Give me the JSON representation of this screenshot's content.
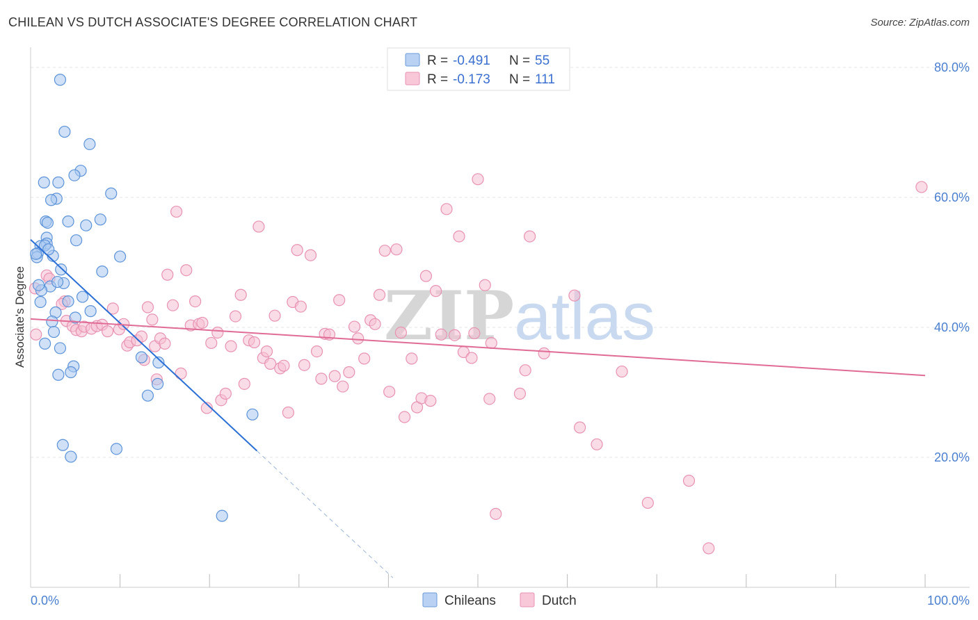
{
  "header": {
    "title": "CHILEAN VS DUTCH ASSOCIATE'S DEGREE CORRELATION CHART",
    "source": "Source: ZipAtlas.com"
  },
  "watermark": {
    "part1": "ZIP",
    "part2": "atlas"
  },
  "colors": {
    "chileans_fill": "#a9c8f0",
    "chileans_stroke": "#5b92d8",
    "chileans_line": "#2a6fd6",
    "dutch_fill": "#f6bfd2",
    "dutch_stroke": "#e892b2",
    "dutch_line": "#e06b95",
    "axis_text": "#4a7fd0",
    "grid": "#e6e6e6"
  },
  "legend": {
    "rows": [
      {
        "r_label": "R =",
        "r_value": "-0.491",
        "n_label": "N =",
        "n_value": "55"
      },
      {
        "r_label": "R =",
        "r_value": "-0.173",
        "n_label": "N =",
        "n_value": "111"
      }
    ]
  },
  "bottom_legend": {
    "chileans": "Chileans",
    "dutch": "Dutch"
  },
  "chart_data": {
    "type": "scatter",
    "title": "CHILEAN VS DUTCH ASSOCIATE'S DEGREE CORRELATION CHART",
    "xlabel": "",
    "ylabel": "Associate's Degree",
    "xlim": [
      0,
      100
    ],
    "ylim": [
      0,
      82
    ],
    "x_tick_labels": [
      "0.0%",
      "100.0%"
    ],
    "y_ticks": [
      20,
      40,
      60,
      80
    ],
    "y_tick_labels": [
      "20.0%",
      "40.0%",
      "60.0%",
      "80.0%"
    ],
    "grid": true,
    "series": [
      {
        "name": "Chileans",
        "R": -0.491,
        "N": 55,
        "trend": {
          "x0": 0,
          "y0": 53.5,
          "x1": 25.3,
          "y1": 21.0,
          "dash_to_x": 40.5
        },
        "points": [
          [
            3.3,
            78.1
          ],
          [
            3.8,
            70.1
          ],
          [
            6.6,
            68.2
          ],
          [
            5.6,
            64.1
          ],
          [
            4.9,
            63.4
          ],
          [
            1.5,
            62.3
          ],
          [
            3.1,
            62.3
          ],
          [
            9.0,
            60.6
          ],
          [
            2.9,
            59.8
          ],
          [
            2.3,
            59.6
          ],
          [
            7.8,
            56.6
          ],
          [
            1.7,
            56.3
          ],
          [
            4.2,
            56.3
          ],
          [
            1.9,
            56.1
          ],
          [
            6.2,
            55.7
          ],
          [
            1.8,
            53.8
          ],
          [
            5.1,
            53.4
          ],
          [
            1.8,
            52.9
          ],
          [
            1.1,
            52.5
          ],
          [
            1.6,
            52.6
          ],
          [
            0.8,
            51.4
          ],
          [
            2.5,
            51.0
          ],
          [
            0.7,
            50.8
          ],
          [
            10.0,
            50.9
          ],
          [
            3.4,
            48.9
          ],
          [
            8.0,
            48.6
          ],
          [
            3.7,
            46.8
          ],
          [
            2.2,
            46.3
          ],
          [
            5.8,
            44.7
          ],
          [
            1.1,
            43.9
          ],
          [
            4.2,
            44.0
          ],
          [
            6.7,
            42.5
          ],
          [
            2.8,
            42.3
          ],
          [
            2.4,
            40.9
          ],
          [
            1.6,
            37.5
          ],
          [
            3.3,
            36.8
          ],
          [
            12.4,
            35.4
          ],
          [
            14.3,
            34.6
          ],
          [
            4.8,
            34.0
          ],
          [
            4.5,
            33.1
          ],
          [
            3.1,
            32.7
          ],
          [
            14.2,
            31.3
          ],
          [
            13.1,
            29.5
          ],
          [
            24.8,
            26.6
          ],
          [
            3.6,
            21.9
          ],
          [
            9.6,
            21.3
          ],
          [
            4.5,
            20.1
          ],
          [
            21.4,
            11.0
          ],
          [
            0.6,
            51.3
          ],
          [
            2.0,
            52.0
          ],
          [
            3.0,
            47.0
          ],
          [
            1.2,
            45.7
          ],
          [
            5.0,
            41.5
          ],
          [
            0.9,
            46.5
          ],
          [
            2.6,
            39.3
          ]
        ]
      },
      {
        "name": "Dutch",
        "R": -0.173,
        "N": 111,
        "trend": {
          "x0": 0,
          "y0": 41.3,
          "x1": 100,
          "y1": 32.6
        },
        "points": [
          [
            0.5,
            46.0
          ],
          [
            0.6,
            38.9
          ],
          [
            1.8,
            48.0
          ],
          [
            2.1,
            47.5
          ],
          [
            3.8,
            44.0
          ],
          [
            3.5,
            43.6
          ],
          [
            4.0,
            41.0
          ],
          [
            4.7,
            40.2
          ],
          [
            5.1,
            39.6
          ],
          [
            5.7,
            39.4
          ],
          [
            6.0,
            40.1
          ],
          [
            6.8,
            39.8
          ],
          [
            7.4,
            40.2
          ],
          [
            8.0,
            40.4
          ],
          [
            8.6,
            39.4
          ],
          [
            9.2,
            42.9
          ],
          [
            9.9,
            39.7
          ],
          [
            10.4,
            40.5
          ],
          [
            10.8,
            37.2
          ],
          [
            11.1,
            37.7
          ],
          [
            11.9,
            38.0
          ],
          [
            12.7,
            35.0
          ],
          [
            12.4,
            38.6
          ],
          [
            13.1,
            43.1
          ],
          [
            13.6,
            41.2
          ],
          [
            13.9,
            37.1
          ],
          [
            14.5,
            38.3
          ],
          [
            14.1,
            32.0
          ],
          [
            15.0,
            37.5
          ],
          [
            15.3,
            48.1
          ],
          [
            15.9,
            43.4
          ],
          [
            16.3,
            57.8
          ],
          [
            16.8,
            32.9
          ],
          [
            17.4,
            48.8
          ],
          [
            17.9,
            40.3
          ],
          [
            18.4,
            44.0
          ],
          [
            18.8,
            40.5
          ],
          [
            19.2,
            40.7
          ],
          [
            19.7,
            27.6
          ],
          [
            20.2,
            37.6
          ],
          [
            20.9,
            39.2
          ],
          [
            21.3,
            28.8
          ],
          [
            21.8,
            29.8
          ],
          [
            22.4,
            37.1
          ],
          [
            22.9,
            41.7
          ],
          [
            23.5,
            45.0
          ],
          [
            23.9,
            31.3
          ],
          [
            24.4,
            38.0
          ],
          [
            25.0,
            37.7
          ],
          [
            25.5,
            55.5
          ],
          [
            26.0,
            35.3
          ],
          [
            26.4,
            36.3
          ],
          [
            26.8,
            34.4
          ],
          [
            27.3,
            41.8
          ],
          [
            27.9,
            33.7
          ],
          [
            28.3,
            34.1
          ],
          [
            28.8,
            26.9
          ],
          [
            29.3,
            43.9
          ],
          [
            29.8,
            51.9
          ],
          [
            30.2,
            43.2
          ],
          [
            30.6,
            34.2
          ],
          [
            31.3,
            51.1
          ],
          [
            32.0,
            36.3
          ],
          [
            32.5,
            32.1
          ],
          [
            32.9,
            39.0
          ],
          [
            33.4,
            38.9
          ],
          [
            34.0,
            32.5
          ],
          [
            34.5,
            44.2
          ],
          [
            34.9,
            30.9
          ],
          [
            35.6,
            33.1
          ],
          [
            36.2,
            40.1
          ],
          [
            36.6,
            38.3
          ],
          [
            37.3,
            35.2
          ],
          [
            38.0,
            41.1
          ],
          [
            38.5,
            40.5
          ],
          [
            39.0,
            45.0
          ],
          [
            39.6,
            51.8
          ],
          [
            40.1,
            30.1
          ],
          [
            40.9,
            52.0
          ],
          [
            41.4,
            39.2
          ],
          [
            41.8,
            26.2
          ],
          [
            42.6,
            35.2
          ],
          [
            43.2,
            27.7
          ],
          [
            43.7,
            29.1
          ],
          [
            44.2,
            47.9
          ],
          [
            44.7,
            28.7
          ],
          [
            45.3,
            45.6
          ],
          [
            45.9,
            38.9
          ],
          [
            46.5,
            58.2
          ],
          [
            47.4,
            38.8
          ],
          [
            47.9,
            54.0
          ],
          [
            48.4,
            36.2
          ],
          [
            49.3,
            35.3
          ],
          [
            49.6,
            39.1
          ],
          [
            50.0,
            62.8
          ],
          [
            50.8,
            46.5
          ],
          [
            51.3,
            29.0
          ],
          [
            51.5,
            37.6
          ],
          [
            52.0,
            11.3
          ],
          [
            54.7,
            29.8
          ],
          [
            55.3,
            33.4
          ],
          [
            55.8,
            54.0
          ],
          [
            57.4,
            36.0
          ],
          [
            60.8,
            44.9
          ],
          [
            61.4,
            24.6
          ],
          [
            63.3,
            22.0
          ],
          [
            66.1,
            33.2
          ],
          [
            69.0,
            13.0
          ],
          [
            73.6,
            16.4
          ],
          [
            75.8,
            6.0
          ],
          [
            99.6,
            61.6
          ]
        ]
      }
    ]
  }
}
